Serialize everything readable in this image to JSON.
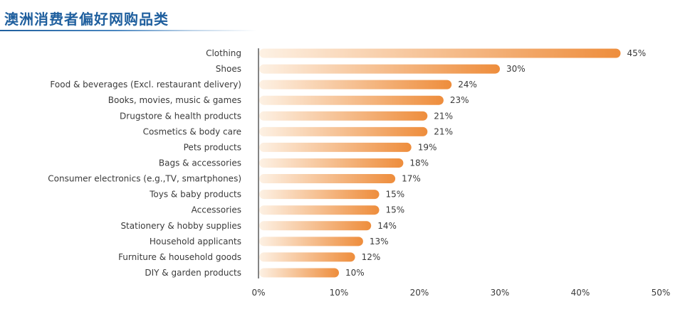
{
  "header": {
    "title": "澳洲消费者偏好网购品类"
  },
  "colors": {
    "title": "#1f5f9e",
    "bar_start": "#fdf1e4",
    "bar_end": "#ee8d3c",
    "axis": "#333333",
    "text": "#3a3a3a"
  },
  "chart_data": {
    "type": "bar",
    "orientation": "horizontal",
    "title": "澳洲消费者偏好网购品类",
    "xlabel": "",
    "ylabel": "",
    "xlim": [
      0,
      50
    ],
    "grid": false,
    "legend": "none",
    "categories": [
      "Clothing",
      "Shoes",
      "Food & beverages (Excl. restaurant delivery)",
      "Books, movies, music & games",
      "Drugstore & health products",
      "Cosmetics & body care",
      "Pets products",
      "Bags & accessories",
      "Consumer electronics (e.g.,TV, smartphones)",
      "Toys & baby products",
      "Accessories",
      "Stationery & hobby supplies",
      "Household applicants",
      "Furniture & household goods",
      "DIY & garden products"
    ],
    "values": [
      45,
      30,
      24,
      23,
      21,
      21,
      19,
      18,
      17,
      15,
      15,
      14,
      13,
      12,
      10
    ],
    "value_labels": [
      "45%",
      "30%",
      "24%",
      "23%",
      "21%",
      "21%",
      "19%",
      "18%",
      "17%",
      "15%",
      "15%",
      "14%",
      "13%",
      "12%",
      "10%"
    ],
    "x_ticks": [
      0,
      10,
      20,
      30,
      40,
      50
    ],
    "x_tick_labels": [
      "0%",
      "10%",
      "20%",
      "30%",
      "40%",
      "50%"
    ]
  }
}
